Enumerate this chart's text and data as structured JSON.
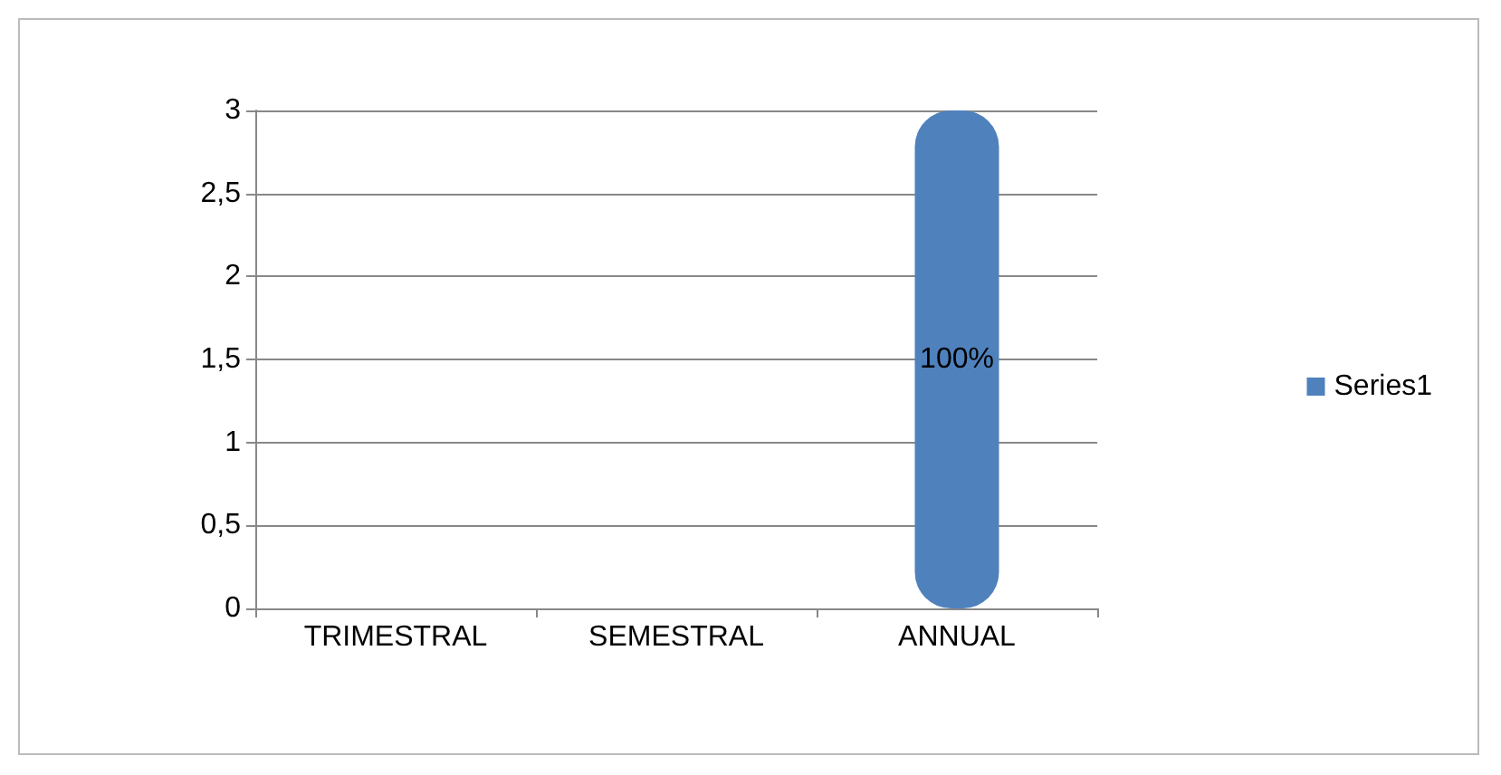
{
  "chart_data": {
    "type": "bar",
    "categories": [
      "TRIMESTRAL",
      "SEMESTRAL",
      "ANNUAL"
    ],
    "series": [
      {
        "name": "Series1",
        "color": "#4f81bd",
        "values": [
          0,
          0,
          3
        ]
      }
    ],
    "annotations": [
      "100%"
    ],
    "ylim": [
      0,
      3
    ],
    "yticks": [
      0,
      {
        "value": 0.5,
        "label": "0,5"
      },
      1,
      {
        "value": 1.5,
        "label": "1,5"
      },
      2,
      {
        "value": 2.5,
        "label": "2,5"
      },
      3
    ],
    "grid": "y",
    "legend": "right"
  }
}
